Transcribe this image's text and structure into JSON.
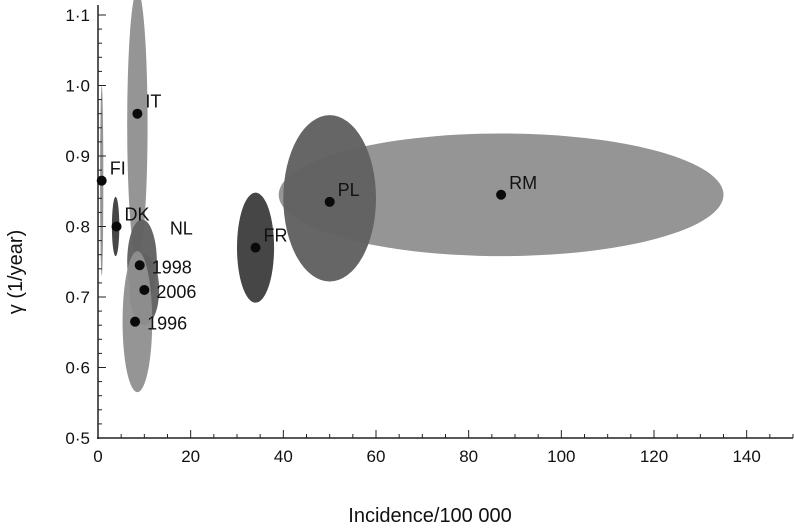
{
  "chart_data": {
    "type": "scatter",
    "xlabel": "Incidence/100 000",
    "ylabel": "γ (1/year)",
    "xlim": [
      0,
      150
    ],
    "ylim": [
      0.5,
      1.1
    ],
    "x_ticks": [
      0,
      20,
      40,
      60,
      80,
      100,
      120,
      140
    ],
    "y_ticks": [
      0.5,
      0.6,
      0.7,
      0.8,
      0.9,
      1.0,
      1.1
    ],
    "y_tick_labels": [
      "0·5",
      "0·6",
      "0·7",
      "0·8",
      "0·9",
      "1·0",
      "1·1"
    ],
    "grid": false,
    "colors": {
      "light_ellipse": "#8f8f8f",
      "mid_ellipse": "#616161",
      "dark_ellipse": "#404040",
      "point": "#0a0a0a"
    },
    "regions": [
      {
        "cx": 87,
        "cy": 0.845,
        "rx": 48,
        "ry": 0.087,
        "shade": "light"
      },
      {
        "cx": 50,
        "cy": 0.84,
        "rx": 10,
        "ry": 0.118,
        "shade": "mid"
      },
      {
        "cx": 34,
        "cy": 0.77,
        "rx": 4,
        "ry": 0.078,
        "shade": "dark"
      },
      {
        "cx": 8.5,
        "cy": 0.945,
        "rx": 2.2,
        "ry": 0.19,
        "shade": "light"
      },
      {
        "cx": 9.5,
        "cy": 0.75,
        "rx": 3.2,
        "ry": 0.06,
        "shade": "mid"
      },
      {
        "cx": 10,
        "cy": 0.71,
        "rx": 3.2,
        "ry": 0.05,
        "shade": "mid"
      },
      {
        "cx": 8.5,
        "cy": 0.665,
        "rx": 3.2,
        "ry": 0.1,
        "shade": "light"
      },
      {
        "cx": 3.8,
        "cy": 0.8,
        "rx": 0.8,
        "ry": 0.042,
        "shade": "dark"
      },
      {
        "cx": 0.8,
        "cy": 0.865,
        "rx": 0.35,
        "ry": 0.135,
        "shade": "light"
      }
    ],
    "points": [
      {
        "label": "RM",
        "x": 87,
        "y": 0.845,
        "label_pos": "above-right"
      },
      {
        "label": "PL",
        "x": 50,
        "y": 0.835,
        "label_pos": "above-right"
      },
      {
        "label": "FR",
        "x": 34,
        "y": 0.77,
        "label_pos": "above-right"
      },
      {
        "label": "IT",
        "x": 8.5,
        "y": 0.96,
        "label_pos": "above-right"
      },
      {
        "label": "1998",
        "x": 9,
        "y": 0.745,
        "label_pos": "right"
      },
      {
        "label": "2006",
        "x": 10,
        "y": 0.71,
        "label_pos": "right"
      },
      {
        "label": "1996",
        "x": 8,
        "y": 0.665,
        "label_pos": "right"
      },
      {
        "label": "DK",
        "x": 4,
        "y": 0.8,
        "label_pos": "above-right"
      },
      {
        "label": "FI",
        "x": 0.8,
        "y": 0.865,
        "label_pos": "above-right"
      }
    ],
    "annotations": [
      {
        "text": "NL",
        "x": 15.5,
        "y": 0.8
      }
    ]
  }
}
